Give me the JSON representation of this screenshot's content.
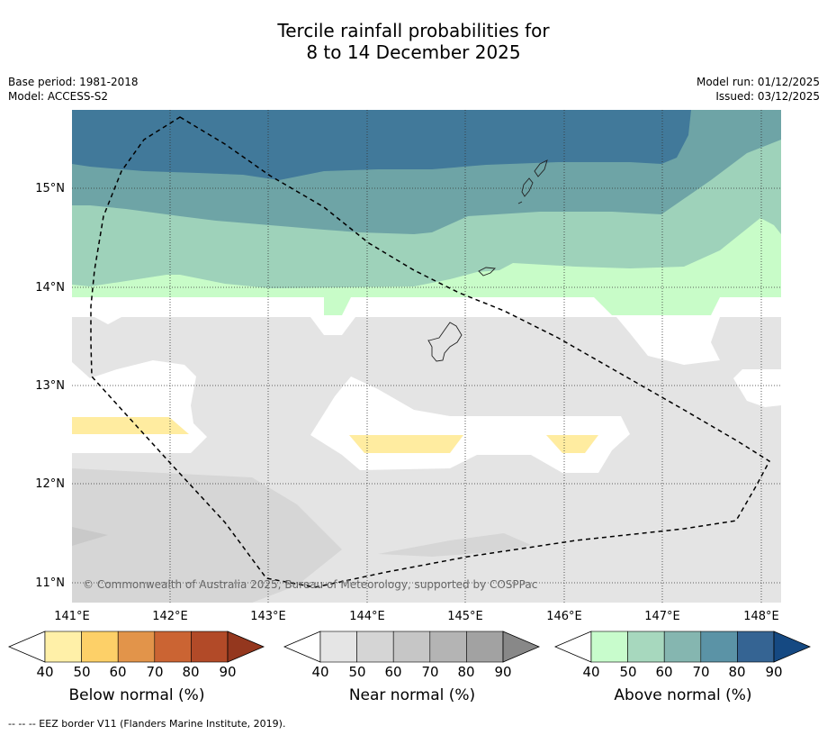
{
  "title": {
    "line1": "Tercile rainfall probabilities for",
    "line2": "8 to 14 December 2025"
  },
  "meta": {
    "base_period": "Base period: 1981-2018",
    "model": "Model: ACCESS-S2",
    "model_run": "Model run: 01/12/2025",
    "issued": "Issued: 03/12/2025"
  },
  "map": {
    "latitude_labels": [
      "15°N",
      "14°N",
      "13°N",
      "12°N",
      "11°N"
    ],
    "longitude_labels": [
      "141°E",
      "142°E",
      "143°E",
      "144°E",
      "145°E",
      "146°E",
      "147°E",
      "148°E"
    ],
    "copyright": "© Commonwealth of Australia 2025, Bureau of Meteorology, supported by COSPPac",
    "colors": {
      "above_90": "#41799a",
      "above_70": "#6ea4a6",
      "above_60": "#9ed2ba",
      "above_40": "#c8fcc8",
      "near_40": "#e4e4e4",
      "near_50": "#d6d6d6",
      "near_60": "#c9c9c9",
      "below_40": "#ffeca0",
      "land_outline": "#222222"
    }
  },
  "legends": [
    {
      "label": "Below normal (%)",
      "ticks": [
        "40",
        "50",
        "60",
        "70",
        "80",
        "90"
      ],
      "colors": [
        "#fff0a8",
        "#fdd068",
        "#e2944a",
        "#cb6433",
        "#b24a28",
        "#94371e"
      ]
    },
    {
      "label": "Near normal (%)",
      "ticks": [
        "40",
        "50",
        "60",
        "70",
        "80",
        "90"
      ],
      "colors": [
        "#e5e5e5",
        "#d5d5d5",
        "#c6c6c6",
        "#b4b4b4",
        "#a2a2a2",
        "#888888"
      ]
    },
    {
      "label": "Above normal (%)",
      "ticks": [
        "40",
        "50",
        "60",
        "70",
        "80",
        "90"
      ],
      "colors": [
        "#c8fccc",
        "#a7d8be",
        "#85b6b0",
        "#5b93a6",
        "#356493",
        "#154982"
      ]
    }
  ],
  "footnote": "--  --  -- EEZ border V11 (Flanders Marine Institute, 2019)."
}
